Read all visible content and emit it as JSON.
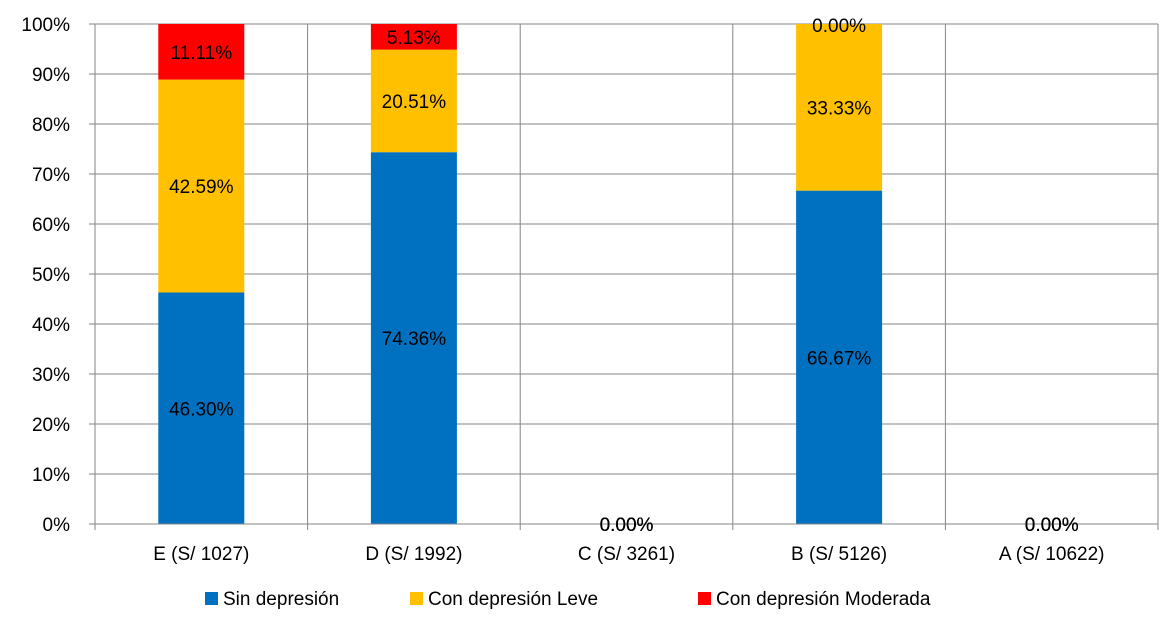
{
  "chart_data": {
    "type": "bar",
    "stacked": true,
    "percent_stacked": true,
    "categories": [
      "E (S/ 1027)",
      "D (S/ 1992)",
      "C (S/ 3261)",
      "B (S/ 5126)",
      "A (S/ 10622)"
    ],
    "series": [
      {
        "name": "Sin depresión",
        "color": "#0070C0",
        "values": [
          46.3,
          74.36,
          0,
          66.67,
          0
        ]
      },
      {
        "name": "Con depresión Leve",
        "color": "#FFC000",
        "values": [
          42.59,
          20.51,
          0,
          33.33,
          0
        ]
      },
      {
        "name": "Con depresión Moderada",
        "color": "#FF0000",
        "values": [
          11.11,
          5.13,
          0,
          0.0,
          0
        ]
      }
    ],
    "data_labels": [
      [
        "46.30%",
        "74.36%",
        "0.00%",
        "66.67%",
        "0.00%"
      ],
      [
        "42.59%",
        "20.51%",
        "0.00%",
        "33.33%",
        "0.00%"
      ],
      [
        "11.11%",
        "5.13%",
        "0.00%",
        "0.00%",
        "0.00%"
      ]
    ],
    "y_ticks": [
      "0%",
      "10%",
      "20%",
      "30%",
      "40%",
      "50%",
      "60%",
      "70%",
      "80%",
      "90%",
      "100%"
    ],
    "ylim": [
      0,
      100
    ],
    "grid": true,
    "legend_position": "bottom"
  }
}
